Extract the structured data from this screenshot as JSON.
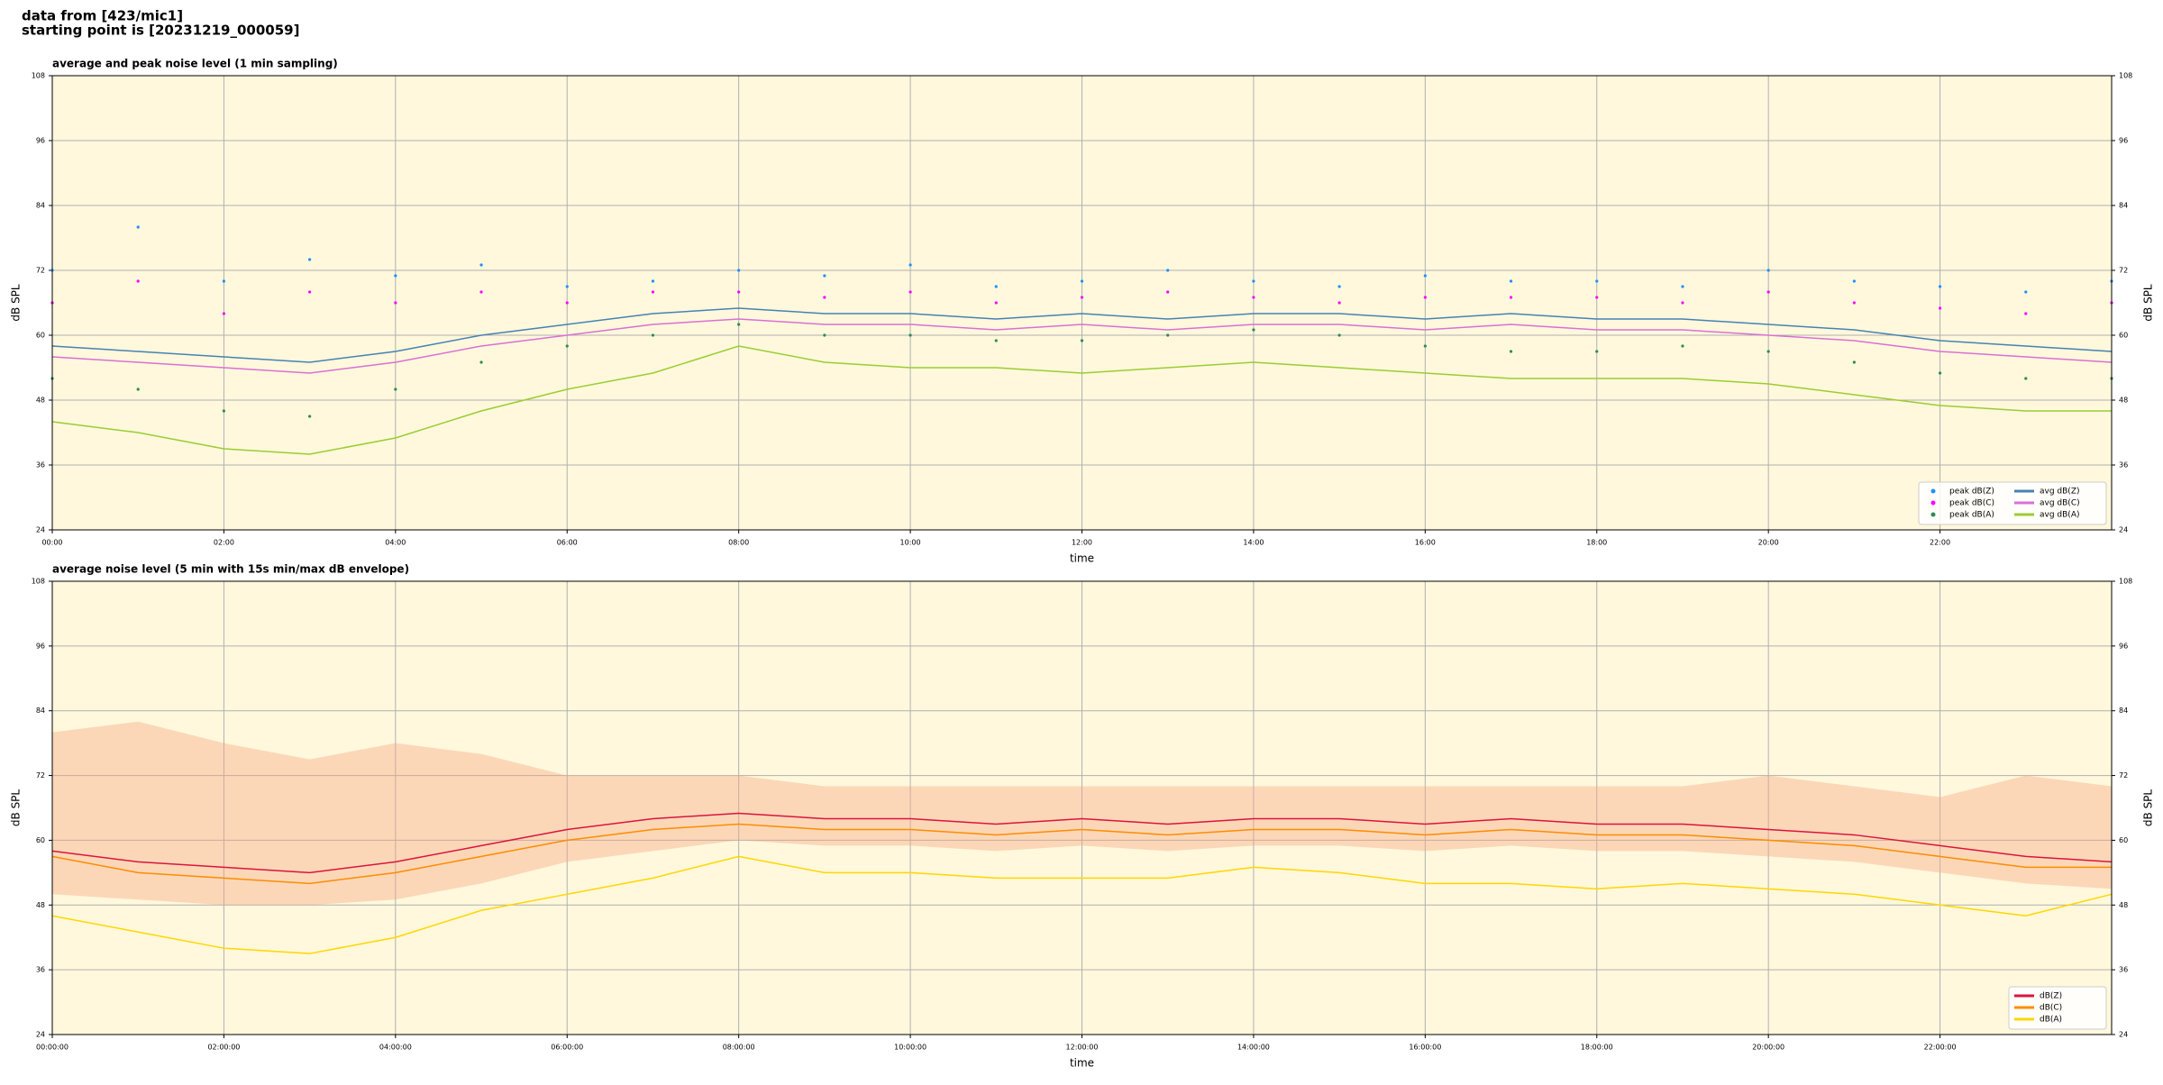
{
  "header": {
    "line1": "data from [423/mic1]",
    "line2": "starting point is [20231219_000059]"
  },
  "chart_data": [
    {
      "type": "line",
      "title": "average and peak noise level (1 min sampling)",
      "x_label": "time",
      "y_label": "dB SPL",
      "background": "#fff8dc",
      "grid": true,
      "legend": "lower right",
      "legend_columns": 2,
      "xlim": [
        0,
        24
      ],
      "ylim": [
        24,
        108
      ],
      "xticks": [
        {
          "value": 0,
          "label": "00:00"
        },
        {
          "value": 2,
          "label": "02:00"
        },
        {
          "value": 4,
          "label": "04:00"
        },
        {
          "value": 6,
          "label": "06:00"
        },
        {
          "value": 8,
          "label": "08:00"
        },
        {
          "value": 10,
          "label": "10:00"
        },
        {
          "value": 12,
          "label": "12:00"
        },
        {
          "value": 14,
          "label": "14:00"
        },
        {
          "value": 16,
          "label": "16:00"
        },
        {
          "value": 18,
          "label": "18:00"
        },
        {
          "value": 20,
          "label": "20:00"
        },
        {
          "value": 22,
          "label": "22:00"
        }
      ],
      "yticks": [
        24,
        36,
        48,
        60,
        72,
        84,
        96,
        108
      ],
      "x": [
        0,
        1,
        2,
        3,
        4,
        5,
        6,
        7,
        8,
        9,
        10,
        11,
        12,
        13,
        14,
        15,
        16,
        17,
        18,
        19,
        20,
        21,
        22,
        23,
        24
      ],
      "series": [
        {
          "name": "peak dB(Z)",
          "style": "dots",
          "color": "#1e90ff",
          "values": [
            72,
            80,
            70,
            74,
            71,
            73,
            69,
            70,
            72,
            71,
            73,
            69,
            70,
            72,
            70,
            69,
            71,
            70,
            70,
            69,
            72,
            70,
            69,
            68,
            70
          ]
        },
        {
          "name": "peak dB(C)",
          "style": "dots",
          "color": "#ff00ff",
          "values": [
            66,
            70,
            64,
            68,
            66,
            68,
            66,
            68,
            68,
            67,
            68,
            66,
            67,
            68,
            67,
            66,
            67,
            67,
            67,
            66,
            68,
            66,
            65,
            64,
            66
          ]
        },
        {
          "name": "peak dB(A)",
          "style": "dots",
          "color": "#2e8b57",
          "values": [
            52,
            50,
            46,
            45,
            50,
            55,
            58,
            60,
            62,
            60,
            60,
            59,
            59,
            60,
            61,
            60,
            58,
            57,
            57,
            58,
            57,
            55,
            53,
            52,
            52
          ]
        },
        {
          "name": "avg dB(Z)",
          "style": "line",
          "color": "#4682b4",
          "values": [
            58,
            57,
            56,
            55,
            57,
            60,
            62,
            64,
            65,
            64,
            64,
            63,
            64,
            63,
            64,
            64,
            63,
            64,
            63,
            63,
            62,
            61,
            59,
            58,
            57
          ]
        },
        {
          "name": "avg dB(C)",
          "style": "line",
          "color": "#da70d6",
          "values": [
            56,
            55,
            54,
            53,
            55,
            58,
            60,
            62,
            63,
            62,
            62,
            61,
            62,
            61,
            62,
            62,
            61,
            62,
            61,
            61,
            60,
            59,
            57,
            56,
            55
          ]
        },
        {
          "name": "avg dB(A)",
          "style": "line",
          "color": "#9acd32",
          "values": [
            44,
            42,
            39,
            38,
            41,
            46,
            50,
            53,
            58,
            55,
            54,
            54,
            53,
            54,
            55,
            54,
            53,
            52,
            52,
            52,
            51,
            49,
            47,
            46,
            46
          ]
        }
      ]
    },
    {
      "type": "line",
      "title": "average noise level (5 min with 15s min/max dB envelope)",
      "x_label": "time",
      "y_label": "dB SPL",
      "background": "#fff8dc",
      "grid": true,
      "legend": "lower right",
      "legend_columns": 1,
      "xlim": [
        0,
        24
      ],
      "ylim": [
        24,
        108
      ],
      "xticks": [
        {
          "value": 0,
          "label": "00:00:00"
        },
        {
          "value": 2,
          "label": "02:00:00"
        },
        {
          "value": 4,
          "label": "04:00:00"
        },
        {
          "value": 6,
          "label": "06:00:00"
        },
        {
          "value": 8,
          "label": "08:00:00"
        },
        {
          "value": 10,
          "label": "10:00:00"
        },
        {
          "value": 12,
          "label": "12:00:00"
        },
        {
          "value": 14,
          "label": "14:00:00"
        },
        {
          "value": 16,
          "label": "16:00:00"
        },
        {
          "value": 18,
          "label": "18:00:00"
        },
        {
          "value": 20,
          "label": "20:00:00"
        },
        {
          "value": 22,
          "label": "22:00:00"
        }
      ],
      "yticks": [
        24,
        36,
        48,
        60,
        72,
        84,
        96,
        108
      ],
      "x": [
        0,
        1,
        2,
        3,
        4,
        5,
        6,
        7,
        8,
        9,
        10,
        11,
        12,
        13,
        14,
        15,
        16,
        17,
        18,
        19,
        20,
        21,
        22,
        23,
        24
      ],
      "envelope": {
        "color": "#f4a582",
        "low": [
          50,
          49,
          48,
          48,
          49,
          52,
          56,
          58,
          60,
          59,
          59,
          58,
          59,
          58,
          59,
          59,
          58,
          59,
          58,
          58,
          57,
          56,
          54,
          52,
          51
        ],
        "high": [
          80,
          82,
          78,
          75,
          78,
          76,
          72,
          72,
          72,
          70,
          70,
          70,
          70,
          70,
          70,
          70,
          70,
          70,
          70,
          70,
          72,
          70,
          68,
          72,
          70
        ]
      },
      "series": [
        {
          "name": "dB(Z)",
          "style": "line",
          "color": "#dc143c",
          "values": [
            58,
            56,
            55,
            54,
            56,
            59,
            62,
            64,
            65,
            64,
            64,
            63,
            64,
            63,
            64,
            64,
            63,
            64,
            63,
            63,
            62,
            61,
            59,
            57,
            56
          ]
        },
        {
          "name": "dB(C)",
          "style": "line",
          "color": "#ff8c00",
          "values": [
            57,
            54,
            53,
            52,
            54,
            57,
            60,
            62,
            63,
            62,
            62,
            61,
            62,
            61,
            62,
            62,
            61,
            62,
            61,
            61,
            60,
            59,
            57,
            55,
            55
          ]
        },
        {
          "name": "dB(A)",
          "style": "line",
          "color": "#ffd700",
          "values": [
            46,
            43,
            40,
            39,
            42,
            47,
            50,
            53,
            57,
            54,
            54,
            53,
            53,
            53,
            55,
            54,
            52,
            52,
            51,
            52,
            51,
            50,
            48,
            46,
            50
          ]
        }
      ]
    }
  ]
}
